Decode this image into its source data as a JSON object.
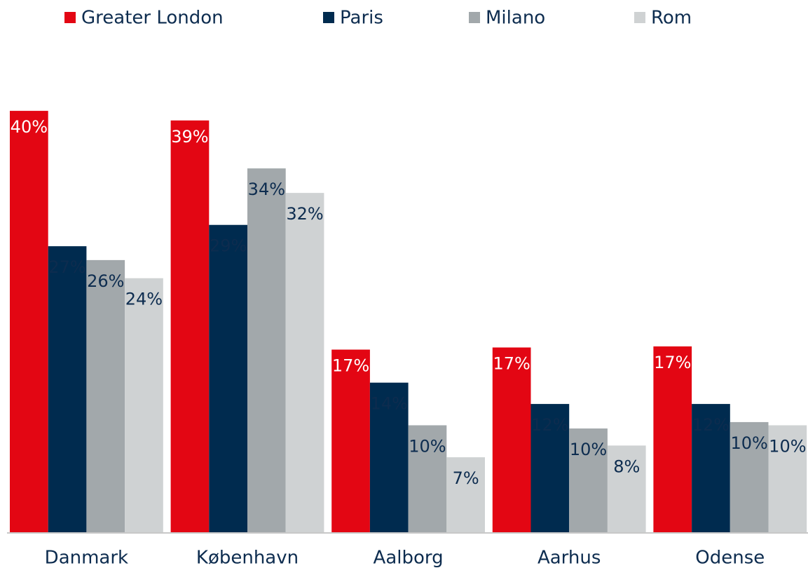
{
  "chart_data": {
    "type": "bar",
    "categories": [
      "Danmark",
      "København",
      "Aalborg",
      "Aarhus",
      "Odense"
    ],
    "series": [
      {
        "name": "Greater London",
        "color": "#e30613",
        "values": [
          39.6,
          38.7,
          17.2,
          17.4,
          17.5
        ],
        "value_labels": [
          "40%",
          "39%",
          "17%",
          "17%",
          "17%"
        ]
      },
      {
        "name": "Paris",
        "color": "#002b4f",
        "values": [
          26.9,
          28.9,
          14.1,
          12.1,
          12.1
        ],
        "value_labels": [
          "27%",
          "29%",
          "14%",
          "12%",
          "12%"
        ]
      },
      {
        "name": "Milano",
        "color": "#a2a8ab",
        "values": [
          25.6,
          34.2,
          10.1,
          9.8,
          10.4
        ],
        "value_labels": [
          "26%",
          "34%",
          "10%",
          "10%",
          "10%"
        ]
      },
      {
        "name": "Rom",
        "color": "#cfd2d3",
        "values": [
          23.9,
          31.9,
          7.1,
          8.2,
          10.1
        ],
        "value_labels": [
          "24%",
          "32%",
          "7%",
          "8%",
          "10%"
        ]
      }
    ],
    "ylim": [
      0,
      45
    ]
  }
}
